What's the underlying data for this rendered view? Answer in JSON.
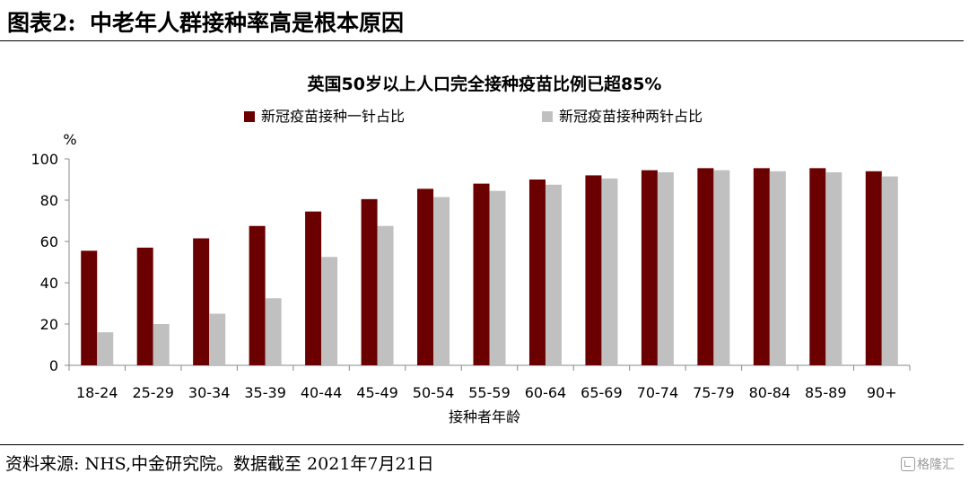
{
  "figure": {
    "label": "图表2:",
    "title": "中老年人群接种率高是根本原因",
    "source": "资料来源: NHS,中金研究院。数据截至 2021年7月21日",
    "watermark": "格隆汇"
  },
  "chart_data": {
    "type": "bar",
    "title": "英国50岁以上人口完全接种疫苗比例已超85%",
    "xlabel": "接种者年龄",
    "ylabel": "%",
    "ylim": [
      0,
      100
    ],
    "yticks": [
      0,
      20,
      40,
      60,
      80,
      100
    ],
    "grid": false,
    "legend_position": "top",
    "categories": [
      "18-24",
      "25-29",
      "30-34",
      "35-39",
      "40-44",
      "45-49",
      "50-54",
      "55-59",
      "60-64",
      "65-69",
      "70-74",
      "75-79",
      "80-84",
      "85-89",
      "90+"
    ],
    "series": [
      {
        "name": "新冠疫苗接种一针占比",
        "color": "#6b0000",
        "values": [
          55.5,
          57,
          61.5,
          67.5,
          74.5,
          80.5,
          85.5,
          88,
          90,
          92,
          94.5,
          95.5,
          95.5,
          95.5,
          94
        ]
      },
      {
        "name": "新冠疫苗接种两针占比",
        "color": "#c0c0c0",
        "values": [
          16,
          20,
          25,
          32.5,
          52.5,
          67.5,
          81.5,
          84.5,
          87.5,
          90.5,
          93.5,
          94.5,
          94,
          93.5,
          91.5
        ]
      }
    ]
  }
}
